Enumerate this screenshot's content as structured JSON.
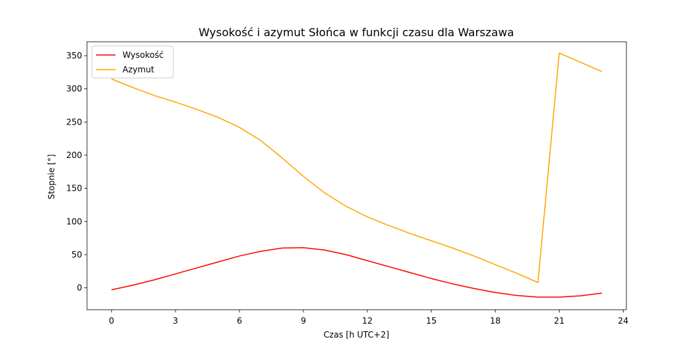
{
  "chart_data": {
    "type": "line",
    "title": "Wysokość i azymut Słońca w funkcji czasu dla Warszawa",
    "xlabel": "Czas [h UTC+2]",
    "ylabel": "Stopnie [°]",
    "xlim": [
      -1.15,
      24.15
    ],
    "ylim": [
      -33,
      371
    ],
    "xticks": [
      0,
      3,
      6,
      9,
      12,
      15,
      18,
      21,
      24
    ],
    "yticks": [
      0,
      50,
      100,
      150,
      200,
      250,
      300,
      350
    ],
    "grid": false,
    "legend_position": "top-left",
    "x": [
      0,
      1,
      2,
      3,
      4,
      5,
      6,
      7,
      8,
      9,
      10,
      11,
      12,
      13,
      14,
      15,
      16,
      17,
      18,
      19,
      20,
      21,
      22,
      23
    ],
    "series": [
      {
        "name": "Wysokość",
        "color": "#ff0000",
        "values": [
          -3,
          4,
          12,
          21,
          30,
          39,
          48,
          55,
          60,
          60.5,
          57,
          50,
          41,
          32,
          23,
          14,
          6,
          -1,
          -7,
          -11.5,
          -14,
          -14,
          -12,
          -8
        ]
      },
      {
        "name": "Azymut",
        "color": "#ffa500",
        "values": [
          315,
          302,
          290,
          280,
          269,
          257,
          242,
          222,
          196,
          168,
          143,
          123,
          107,
          94,
          82,
          71,
          60,
          48,
          35,
          22,
          8,
          354,
          340,
          326
        ]
      }
    ]
  }
}
